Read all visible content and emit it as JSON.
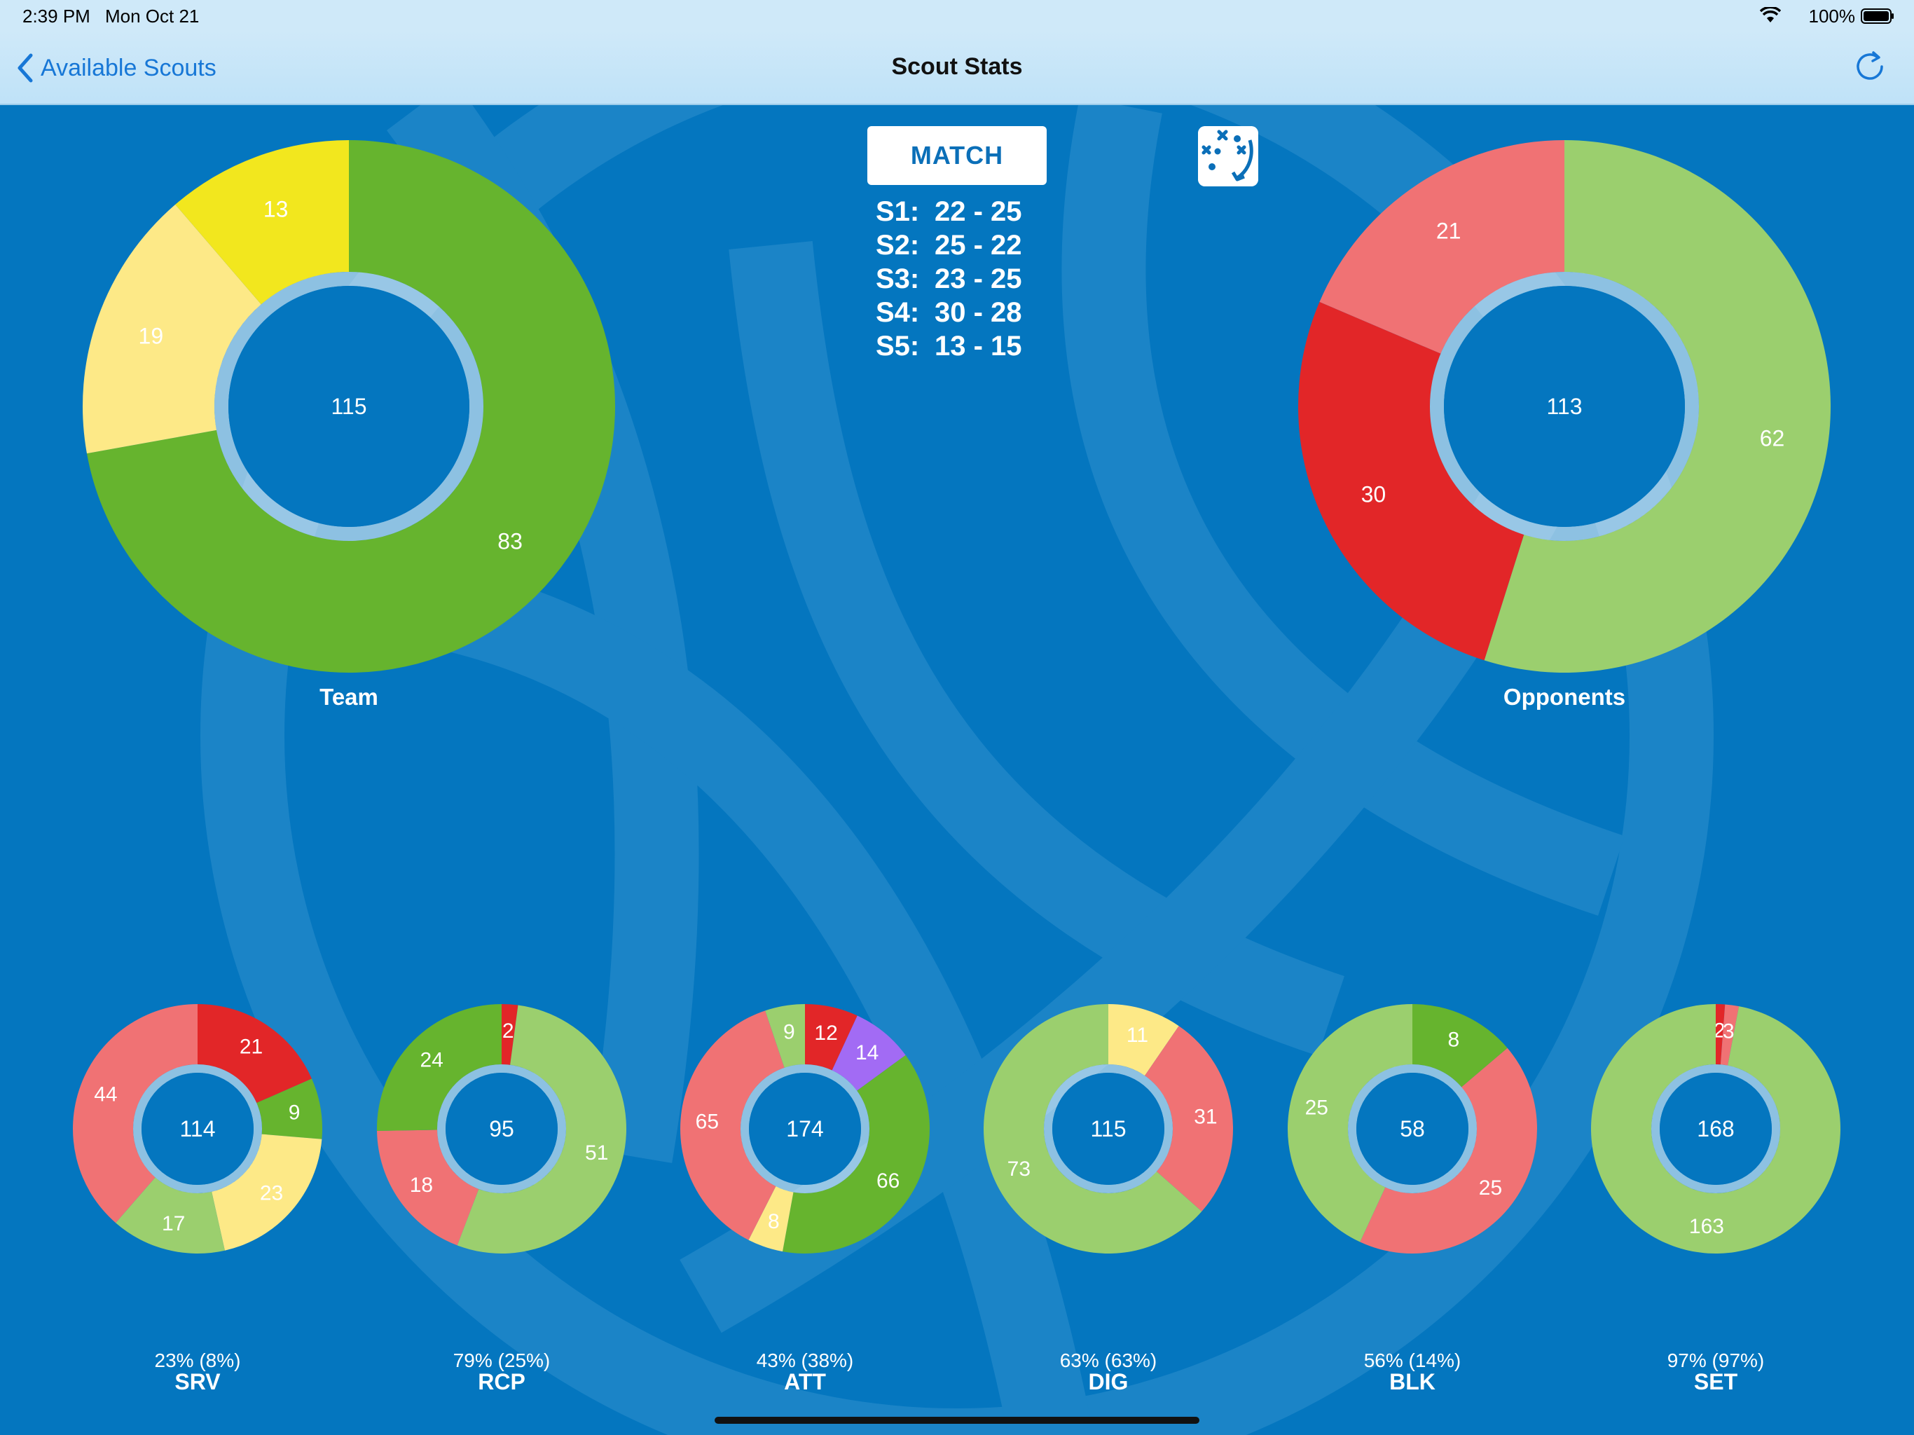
{
  "status_bar": {
    "time": "2:39 PM",
    "date": "Mon Oct 21",
    "battery": "100%"
  },
  "nav": {
    "back_label": "Available Scouts",
    "title": "Scout Stats"
  },
  "match_button": "MATCH",
  "sets": [
    {
      "label": "S1:",
      "score": "22 - 25"
    },
    {
      "label": "S2:",
      "score": "25 - 22"
    },
    {
      "label": "S3:",
      "score": "23 - 25"
    },
    {
      "label": "S4:",
      "score": "30 - 28"
    },
    {
      "label": "S5:",
      "score": "13 - 15"
    }
  ],
  "colors": {
    "dark_green": "#66b42e",
    "light_green": "#9bcf6e",
    "yellow": "#f2e71e",
    "light_yellow": "#fde987",
    "red": "#e22628",
    "light_red": "#f07274",
    "purple": "#a26bf4",
    "background": "#0476bf"
  },
  "chart_data": [
    {
      "type": "pie",
      "label": "Team",
      "center": "115",
      "slices": [
        {
          "value": 83,
          "color": "dark_green"
        },
        {
          "value": 19,
          "color": "light_yellow"
        },
        {
          "value": 13,
          "color": "yellow"
        }
      ]
    },
    {
      "type": "pie",
      "label": "Opponents",
      "center": "113",
      "slices": [
        {
          "value": 62,
          "color": "light_green"
        },
        {
          "value": 30,
          "color": "red"
        },
        {
          "value": 21,
          "color": "light_red"
        }
      ]
    },
    {
      "type": "pie",
      "label": "SRV",
      "pct": "23% (8%)",
      "center": "114",
      "slices": [
        {
          "value": 21,
          "color": "red"
        },
        {
          "value": 9,
          "color": "dark_green"
        },
        {
          "value": 23,
          "color": "light_yellow"
        },
        {
          "value": 17,
          "color": "light_green"
        },
        {
          "value": 44,
          "color": "light_red"
        }
      ]
    },
    {
      "type": "pie",
      "label": "RCP",
      "pct": "79% (25%)",
      "center": "95",
      "slices": [
        {
          "value": 2,
          "color": "red"
        },
        {
          "value": 51,
          "color": "light_green"
        },
        {
          "value": 18,
          "color": "light_red"
        },
        {
          "value": 24,
          "color": "dark_green"
        }
      ]
    },
    {
      "type": "pie",
      "label": "ATT",
      "pct": "43% (38%)",
      "center": "174",
      "slices": [
        {
          "value": 12,
          "color": "red"
        },
        {
          "value": 14,
          "color": "purple"
        },
        {
          "value": 66,
          "color": "dark_green"
        },
        {
          "value": 8,
          "color": "light_yellow"
        },
        {
          "value": 65,
          "color": "light_red"
        },
        {
          "value": 9,
          "color": "light_green"
        }
      ]
    },
    {
      "type": "pie",
      "label": "DIG",
      "pct": "63% (63%)",
      "center": "115",
      "slices": [
        {
          "value": 11,
          "color": "light_yellow"
        },
        {
          "value": 31,
          "color": "light_red"
        },
        {
          "value": 73,
          "color": "light_green"
        }
      ]
    },
    {
      "type": "pie",
      "label": "BLK",
      "pct": "56% (14%)",
      "center": "58",
      "slices": [
        {
          "value": 8,
          "color": "dark_green"
        },
        {
          "value": 25,
          "color": "light_red"
        },
        {
          "value": 25,
          "color": "light_green"
        }
      ]
    },
    {
      "type": "pie",
      "label": "SET",
      "pct": "97% (97%)",
      "center": "168",
      "slices": [
        {
          "value": 2,
          "color": "red"
        },
        {
          "value": 3,
          "color": "light_red"
        },
        {
          "value": 163,
          "color": "light_green"
        }
      ]
    }
  ]
}
